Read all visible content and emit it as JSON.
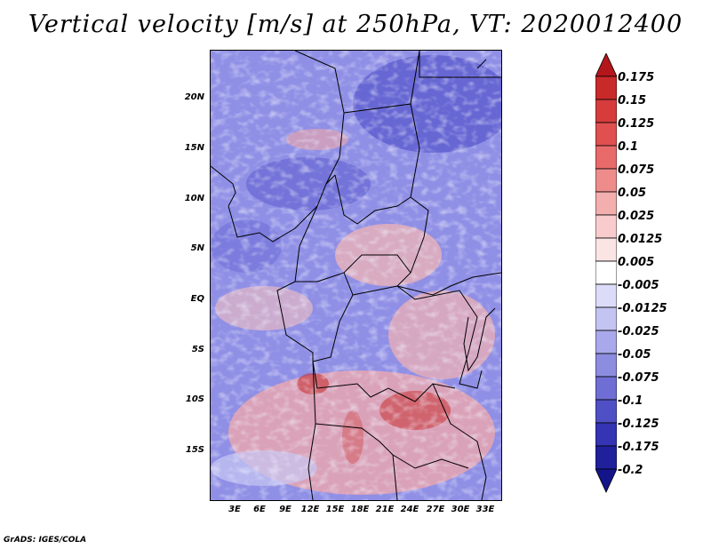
{
  "title": "Vertical velocity [m/s] at 250hPa, VT: 2020012400",
  "credit": "GrADS: IGES/COLA",
  "map": {
    "lat_labels": [
      "20N",
      "15N",
      "10N",
      "5N",
      "EQ",
      "5S",
      "10S",
      "15S"
    ],
    "lon_labels": [
      "3E",
      "6E",
      "9E",
      "12E",
      "15E",
      "18E",
      "21E",
      "24E",
      "27E",
      "30E",
      "33E"
    ]
  },
  "colorbar": {
    "labels": [
      "0.175",
      "0.15",
      "0.125",
      "0.1",
      "0.075",
      "0.05",
      "0.025",
      "0.0125",
      "0.005",
      "-0.005",
      "-0.0125",
      "-0.025",
      "-0.05",
      "-0.075",
      "-0.1",
      "-0.125",
      "-0.175",
      "-0.2"
    ],
    "colors": [
      "#b4161c",
      "#c82a2a",
      "#d63c3c",
      "#e05050",
      "#e86a6a",
      "#ee8c8c",
      "#f3aeae",
      "#f8cccc",
      "#fbe4e4",
      "#ffffff",
      "#dcdcf8",
      "#c4c4f2",
      "#a8a8ea",
      "#8c8ce0",
      "#6e6ed4",
      "#5050c6",
      "#3434b4",
      "#20209c",
      "#14148a"
    ]
  }
}
